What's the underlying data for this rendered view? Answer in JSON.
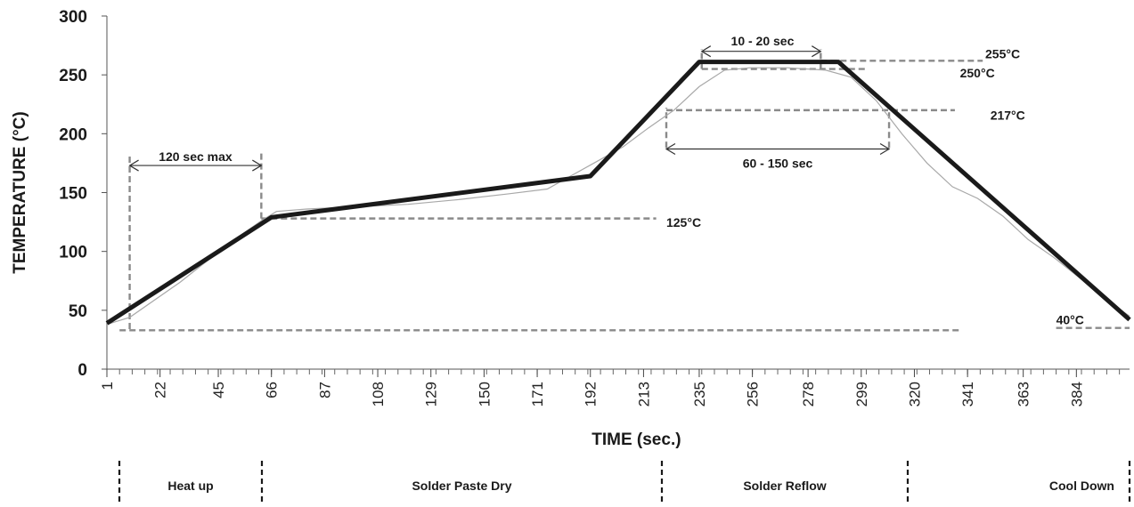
{
  "chart_data": {
    "type": "line",
    "xlabel": "TIME (sec.)",
    "ylabel": "TEMPERATURE (°C)",
    "ylim": [
      0,
      300
    ],
    "xlim": [
      1,
      405
    ],
    "y_ticks": [
      0,
      50,
      100,
      150,
      200,
      250,
      300
    ],
    "x_tick_labels": [
      "1",
      "22",
      "45",
      "66",
      "87",
      "108",
      "129",
      "150",
      "171",
      "192",
      "213",
      "235",
      "256",
      "278",
      "299",
      "320",
      "341",
      "363",
      "384"
    ],
    "grid": false,
    "series": [
      {
        "points": [
          [
            1,
            39
          ],
          [
            66,
            129
          ],
          [
            192,
            164
          ],
          [
            235,
            261
          ],
          [
            290,
            261
          ],
          [
            405,
            42
          ]
        ]
      },
      {
        "points": [
          [
            1,
            38
          ],
          [
            10,
            44
          ],
          [
            30,
            74
          ],
          [
            50,
            108
          ],
          [
            62,
            126
          ],
          [
            68,
            134
          ],
          [
            80,
            136
          ],
          [
            100,
            138
          ],
          [
            120,
            140
          ],
          [
            140,
            144
          ],
          [
            160,
            149
          ],
          [
            175,
            153
          ],
          [
            185,
            165
          ],
          [
            195,
            177
          ],
          [
            205,
            189
          ],
          [
            215,
            205
          ],
          [
            225,
            220
          ],
          [
            235,
            240
          ],
          [
            245,
            254
          ],
          [
            255,
            256
          ],
          [
            270,
            256
          ],
          [
            285,
            254
          ],
          [
            295,
            248
          ],
          [
            305,
            228
          ],
          [
            315,
            200
          ],
          [
            325,
            175
          ],
          [
            335,
            155
          ],
          [
            345,
            145
          ],
          [
            355,
            130
          ],
          [
            365,
            110
          ],
          [
            375,
            95
          ],
          [
            385,
            78
          ],
          [
            395,
            60
          ],
          [
            405,
            45
          ]
        ]
      }
    ],
    "annotations": [
      {
        "text": "120 sec max"
      },
      {
        "text": "10 - 20 sec"
      },
      {
        "text": "60  - 150 sec"
      },
      {
        "text": "255°C"
      },
      {
        "text": "250°C"
      },
      {
        "text": "217°C"
      },
      {
        "text": "125°C"
      },
      {
        "text": "40°C"
      }
    ],
    "phases": [
      "Heat up",
      "Solder Paste Dry",
      "Solder Reflow",
      "Cool Down"
    ]
  }
}
